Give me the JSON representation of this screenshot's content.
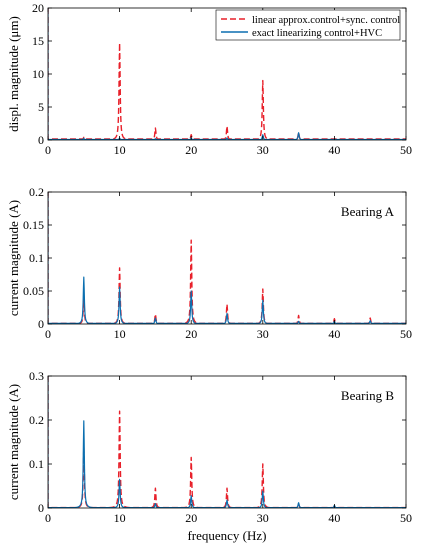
{
  "colors": {
    "red": "#e8202a",
    "blue": "#0b6fb0",
    "axis": "#000000"
  },
  "chart_data": [
    {
      "type": "line",
      "id": "top",
      "title": "",
      "panel_label": "",
      "xlabel": "",
      "ylabel": "displ. magnitude (μm)",
      "xlim": [
        0,
        50
      ],
      "ylim": [
        0,
        20
      ],
      "xticks": [
        "0",
        "10",
        "20",
        "30",
        "40",
        "50"
      ],
      "yticks": [
        "0",
        "5",
        "10",
        "15",
        "20"
      ],
      "legend": {
        "placement": "top-right",
        "entries": [
          "linear approx.control+sync. control",
          "exact linearizing control+HVC"
        ]
      },
      "baseline": {
        "red": 0.15,
        "blue": 0.08
      },
      "series": [
        {
          "name": "linear approx.control+sync. control",
          "style": "dashed",
          "color": "red",
          "peaks": [
            [
              5,
              0.4
            ],
            [
              10,
              14.7
            ],
            [
              15,
              1.8
            ],
            [
              20,
              0.8
            ],
            [
              25,
              2.1
            ],
            [
              30,
              9.0
            ],
            [
              35,
              1.2
            ]
          ]
        },
        {
          "name": "exact linearizing control+HVC",
          "style": "solid",
          "color": "blue",
          "peaks": [
            [
              5,
              0.25
            ],
            [
              10,
              0.3
            ],
            [
              15,
              0.2
            ],
            [
              20,
              0.3
            ],
            [
              25,
              0.3
            ],
            [
              30,
              0.8
            ],
            [
              35,
              1.1
            ]
          ]
        }
      ]
    },
    {
      "type": "line",
      "id": "bearing-a",
      "title": "",
      "panel_label": "Bearing A",
      "xlabel": "",
      "ylabel": "current magnitude (A)",
      "xlim": [
        0,
        50
      ],
      "ylim": [
        0,
        0.2
      ],
      "xticks": [
        "0",
        "10",
        "20",
        "30",
        "40",
        "50"
      ],
      "yticks": [
        "0",
        "0.05",
        "0.1",
        "0.15",
        "0.2"
      ],
      "baseline": {
        "red": 0.001,
        "blue": 0.001
      },
      "series": [
        {
          "name": "linear approx.control+sync. control",
          "style": "dashed",
          "color": "red",
          "peaks": [
            [
              5,
              0.04
            ],
            [
              10,
              0.085
            ],
            [
              15,
              0.015
            ],
            [
              20,
              0.127
            ],
            [
              25,
              0.03
            ],
            [
              30,
              0.053
            ],
            [
              35,
              0.013
            ],
            [
              40,
              0.008
            ],
            [
              45,
              0.009
            ]
          ]
        },
        {
          "name": "exact linearizing control+HVC",
          "style": "solid",
          "color": "blue",
          "peaks": [
            [
              5,
              0.071
            ],
            [
              10,
              0.056
            ],
            [
              15,
              0.009
            ],
            [
              20,
              0.05
            ],
            [
              25,
              0.016
            ],
            [
              30,
              0.036
            ],
            [
              35,
              0.004
            ],
            [
              40,
              0.004
            ],
            [
              45,
              0.005
            ]
          ]
        }
      ]
    },
    {
      "type": "line",
      "id": "bearing-b",
      "title": "",
      "panel_label": "Bearing B",
      "xlabel": "frequency (Hz)",
      "ylabel": "current magnitude (A)",
      "xlim": [
        0,
        50
      ],
      "ylim": [
        0,
        0.3
      ],
      "xticks": [
        "0",
        "10",
        "20",
        "30",
        "40",
        "50"
      ],
      "yticks": [
        "0",
        "0.1",
        "0.2",
        "0.3"
      ],
      "baseline": {
        "red": 0.001,
        "blue": 0.001
      },
      "series": [
        {
          "name": "linear approx.control+sync. control",
          "style": "dashed",
          "color": "red",
          "peaks": [
            [
              5,
              0.14
            ],
            [
              10,
              0.22
            ],
            [
              15,
              0.045
            ],
            [
              20,
              0.115
            ],
            [
              25,
              0.045
            ],
            [
              30,
              0.1
            ],
            [
              35,
              0.01
            ],
            [
              40,
              0.004
            ]
          ]
        },
        {
          "name": "exact linearizing control+HVC",
          "style": "solid",
          "color": "blue",
          "peaks": [
            [
              5,
              0.198
            ],
            [
              10,
              0.065
            ],
            [
              15,
              0.01
            ],
            [
              20,
              0.028
            ],
            [
              25,
              0.018
            ],
            [
              30,
              0.038
            ],
            [
              35,
              0.012
            ],
            [
              40,
              0.006
            ]
          ]
        }
      ]
    }
  ]
}
